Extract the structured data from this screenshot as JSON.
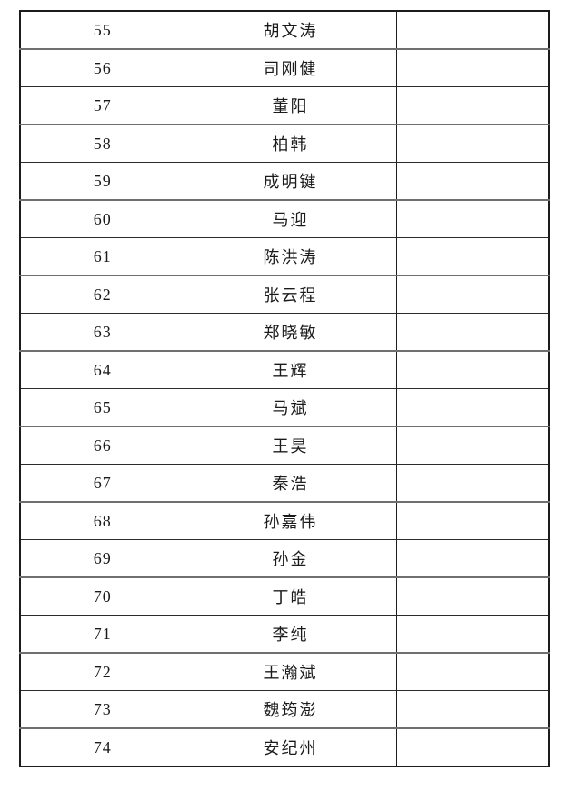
{
  "page": {
    "background_color": "#ffffff",
    "border_color": "#1c1c1c",
    "text_color": "#1b1b1b"
  },
  "rows": [
    {
      "no": "55",
      "name": "胡文涛",
      "blank": ""
    },
    {
      "no": "56",
      "name": "司刚健",
      "blank": ""
    },
    {
      "no": "57",
      "name": "董阳",
      "blank": ""
    },
    {
      "no": "58",
      "name": "柏韩",
      "blank": ""
    },
    {
      "no": "59",
      "name": "成明键",
      "blank": ""
    },
    {
      "no": "60",
      "name": "马迎",
      "blank": ""
    },
    {
      "no": "61",
      "name": "陈洪涛",
      "blank": ""
    },
    {
      "no": "62",
      "name": "张云程",
      "blank": ""
    },
    {
      "no": "63",
      "name": "郑晓敏",
      "blank": ""
    },
    {
      "no": "64",
      "name": "王辉",
      "blank": ""
    },
    {
      "no": "65",
      "name": "马斌",
      "blank": ""
    },
    {
      "no": "66",
      "name": "王昊",
      "blank": ""
    },
    {
      "no": "67",
      "name": "秦浩",
      "blank": ""
    },
    {
      "no": "68",
      "name": "孙嘉伟",
      "blank": ""
    },
    {
      "no": "69",
      "name": "孙金",
      "blank": ""
    },
    {
      "no": "70",
      "name": "丁皓",
      "blank": ""
    },
    {
      "no": "71",
      "name": "李纯",
      "blank": ""
    },
    {
      "no": "72",
      "name": "王瀚斌",
      "blank": ""
    },
    {
      "no": "73",
      "name": "魏筠澎",
      "blank": ""
    },
    {
      "no": "74",
      "name": "安纪州",
      "blank": ""
    }
  ]
}
